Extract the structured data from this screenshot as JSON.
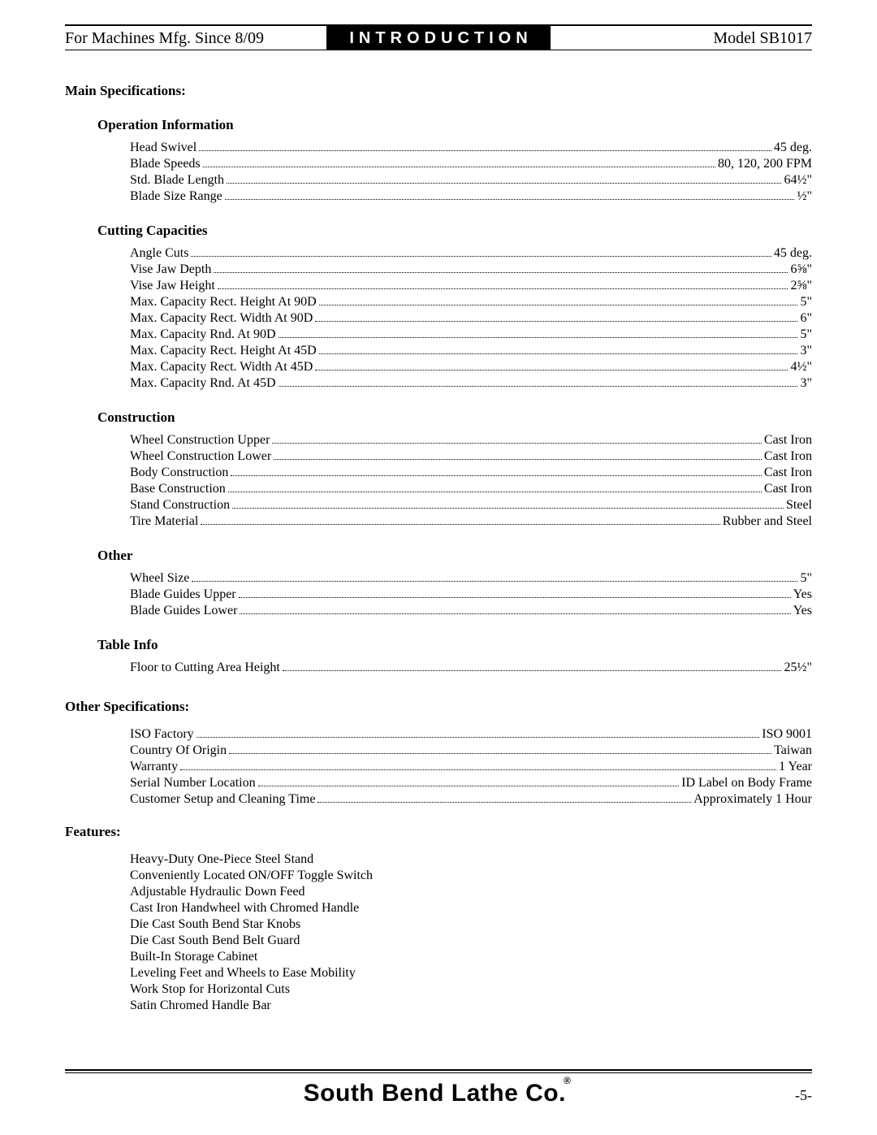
{
  "header": {
    "left": "For Machines Mfg. Since 8/09",
    "center": "INTRODUCTION",
    "right": "Model SB1017"
  },
  "main_spec_title": "Main Specifications:",
  "sections": [
    {
      "title": "Operation Information",
      "rows": [
        {
          "label": "Head Swivel",
          "value": "45 deg."
        },
        {
          "label": "Blade Speeds",
          "value": "80, 120, 200 FPM"
        },
        {
          "label": "Std. Blade Length",
          "value": "64½\""
        },
        {
          "label": "Blade Size Range",
          "value": "½\""
        }
      ]
    },
    {
      "title": "Cutting Capacities",
      "rows": [
        {
          "label": "Angle Cuts",
          "value": "45 deg."
        },
        {
          "label": "Vise Jaw Depth",
          "value": "6⅝\""
        },
        {
          "label": "Vise Jaw Height",
          "value": "2⅝\""
        },
        {
          "label": "Max. Capacity Rect. Height At 90D",
          "value": "5\""
        },
        {
          "label": "Max. Capacity Rect. Width At 90D",
          "value": "6\""
        },
        {
          "label": "Max. Capacity Rnd. At 90D",
          "value": "5\""
        },
        {
          "label": "Max. Capacity Rect. Height At 45D",
          "value": "3\""
        },
        {
          "label": "Max. Capacity Rect. Width At 45D",
          "value": "4½\""
        },
        {
          "label": "Max. Capacity Rnd. At 45D",
          "value": "3\""
        }
      ]
    },
    {
      "title": "Construction",
      "rows": [
        {
          "label": "Wheel Construction Upper",
          "value": "Cast Iron"
        },
        {
          "label": "Wheel Construction Lower",
          "value": "Cast Iron"
        },
        {
          "label": "Body Construction",
          "value": "Cast Iron"
        },
        {
          "label": "Base Construction",
          "value": "Cast Iron"
        },
        {
          "label": "Stand Construction",
          "value": "Steel"
        },
        {
          "label": "Tire Material",
          "value": "Rubber and Steel"
        }
      ]
    },
    {
      "title": "Other",
      "rows": [
        {
          "label": "Wheel Size",
          "value": "5\""
        },
        {
          "label": "Blade Guides Upper",
          "value": "Yes"
        },
        {
          "label": "Blade Guides Lower",
          "value": "Yes"
        }
      ]
    },
    {
      "title": "Table Info",
      "rows": [
        {
          "label": "Floor to Cutting Area Height",
          "value": "25½\""
        }
      ]
    }
  ],
  "other_spec_title": "Other Specifications:",
  "other_rows": [
    {
      "label": "ISO Factory",
      "value": "ISO 9001"
    },
    {
      "label": "Country Of Origin",
      "value": "Taiwan"
    },
    {
      "label": "Warranty",
      "value": "1 Year"
    },
    {
      "label": "Serial Number Location",
      "value": "ID Label on Body Frame"
    },
    {
      "label": "Customer Setup and Cleaning Time",
      "value": "Approximately 1 Hour"
    }
  ],
  "features_title": "Features:",
  "features": [
    "Heavy-Duty One-Piece Steel Stand",
    "Conveniently Located ON/OFF Toggle Switch",
    "Adjustable Hydraulic Down Feed",
    "Cast Iron Handwheel with Chromed Handle",
    "Die Cast South Bend Star Knobs",
    "Die Cast South Bend Belt Guard",
    "Built-In Storage Cabinet",
    "Leveling Feet and Wheels to Ease Mobility",
    "Work Stop for Horizontal Cuts",
    "Satin Chromed Handle Bar"
  ],
  "footer": {
    "brand": "South Bend Lathe Co.",
    "page": "-5-"
  }
}
